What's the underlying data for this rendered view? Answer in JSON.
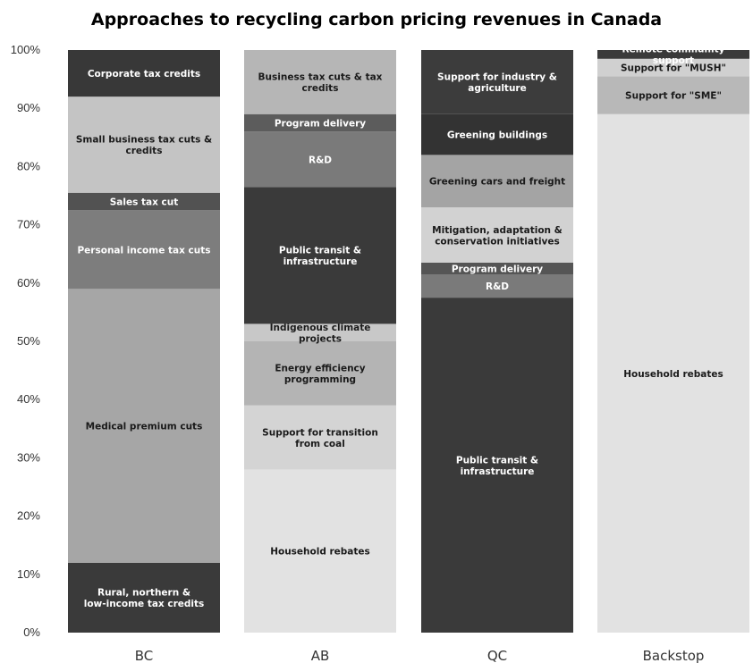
{
  "chart_data": {
    "type": "bar",
    "stacked": true,
    "title": "Approaches to recycling carbon pricing revenues in Canada",
    "xlabel": "",
    "ylabel": "",
    "ylim": [
      0,
      100
    ],
    "y_ticks": [
      "0%",
      "10%",
      "20%",
      "30%",
      "40%",
      "50%",
      "60%",
      "70%",
      "80%",
      "90%",
      "100%"
    ],
    "categories": [
      "BC",
      "AB",
      "QC",
      "Backstop"
    ],
    "grid": false,
    "legend": "none",
    "stacks": [
      {
        "category": "BC",
        "segments": [
          {
            "label": "Rural, northern & low-income tax credits",
            "value": 12,
            "color": "#3a3a3a",
            "text_color": "#ffffff"
          },
          {
            "label": "Medical premium cuts",
            "value": 47,
            "color": "#a6a6a6",
            "text_color": "#1a1a1a"
          },
          {
            "label": "Personal income tax cuts",
            "value": 13.5,
            "color": "#7d7d7d",
            "text_color": "#ffffff"
          },
          {
            "label": "Sales tax cut",
            "value": 3,
            "color": "#525252",
            "text_color": "#ffffff"
          },
          {
            "label": "Small business tax cuts & credits",
            "value": 16.5,
            "color": "#c4c4c4",
            "text_color": "#1a1a1a"
          },
          {
            "label": "Corporate tax credits",
            "value": 8,
            "color": "#383838",
            "text_color": "#ffffff"
          }
        ]
      },
      {
        "category": "AB",
        "segments": [
          {
            "label": "Household rebates",
            "value": 28,
            "color": "#e2e2e2",
            "text_color": "#1a1a1a"
          },
          {
            "label": "Support for transition from coal",
            "value": 11,
            "color": "#d4d4d4",
            "text_color": "#1a1a1a"
          },
          {
            "label": "Energy efficiency programming",
            "value": 11,
            "color": "#b4b4b4",
            "text_color": "#1a1a1a"
          },
          {
            "label": "Indigenous climate projects",
            "value": 3,
            "color": "#c8c8c8",
            "text_color": "#1a1a1a"
          },
          {
            "label": "Public transit & infrastructure",
            "value": 23.5,
            "color": "#3a3a3a",
            "text_color": "#ffffff"
          },
          {
            "label": "R&D",
            "value": 9.5,
            "color": "#7a7a7a",
            "text_color": "#ffffff"
          },
          {
            "label": "Program delivery",
            "value": 3,
            "color": "#5c5c5c",
            "text_color": "#ffffff"
          },
          {
            "label": "Business tax cuts & tax credits",
            "value": 11,
            "color": "#b6b6b6",
            "text_color": "#1a1a1a"
          }
        ]
      },
      {
        "category": "QC",
        "segments": [
          {
            "label": "Public transit & infrastructure",
            "value": 57.5,
            "color": "#3a3a3a",
            "text_color": "#ffffff"
          },
          {
            "label": "R&D",
            "value": 4,
            "color": "#7a7a7a",
            "text_color": "#ffffff"
          },
          {
            "label": "Program delivery",
            "value": 2,
            "color": "#555555",
            "text_color": "#ffffff"
          },
          {
            "label": "Mitigation, adaptation & conservation initiatives",
            "value": 9.5,
            "color": "#d2d2d2",
            "text_color": "#1a1a1a"
          },
          {
            "label": "Greening cars and freight",
            "value": 9,
            "color": "#a4a4a4",
            "text_color": "#1a1a1a"
          },
          {
            "label": "Greening buildings",
            "value": 7,
            "color": "#333333",
            "text_color": "#ffffff"
          },
          {
            "label": "Support for industry & agriculture",
            "value": 11,
            "color": "#3c3c3c",
            "text_color": "#ffffff"
          }
        ]
      },
      {
        "category": "Backstop",
        "segments": [
          {
            "label": "Household rebates",
            "value": 89,
            "color": "#e2e2e2",
            "text_color": "#1a1a1a"
          },
          {
            "label": "Support for \"SME\"",
            "value": 6.5,
            "color": "#b8b8b8",
            "text_color": "#1a1a1a"
          },
          {
            "label": "Support for \"MUSH\"",
            "value": 3,
            "color": "#d0d0d0",
            "text_color": "#1a1a1a"
          },
          {
            "label": "Remote community support",
            "value": 1.5,
            "color": "#3a3a3a",
            "text_color": "#ffffff"
          }
        ]
      }
    ]
  }
}
